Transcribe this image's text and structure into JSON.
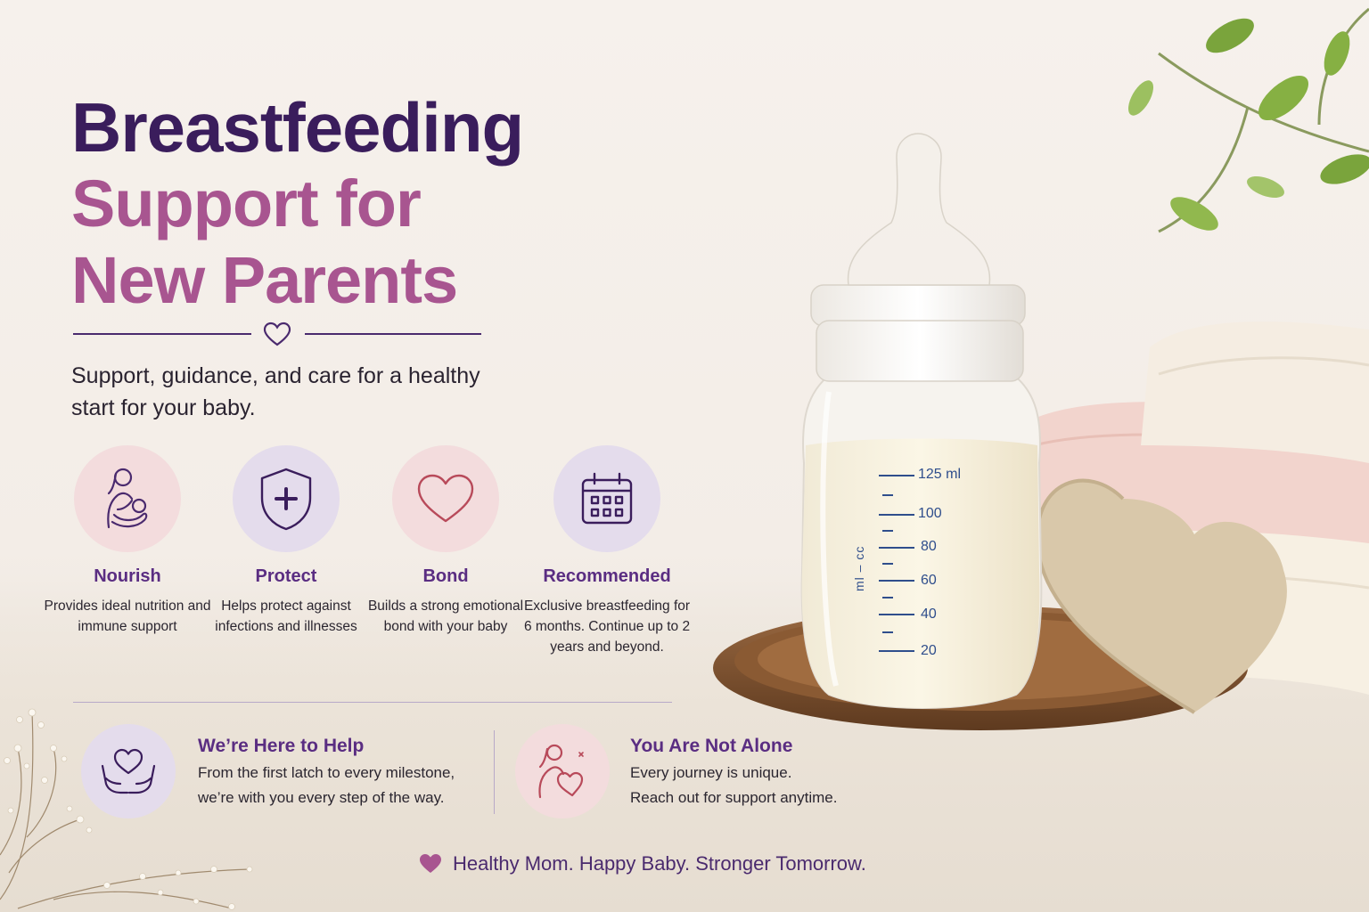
{
  "heading": {
    "line1": "Breastfeeding",
    "line2": "Support for",
    "line3": "New Parents"
  },
  "subtitle": "Support, guidance, and care for a healthy start for your baby.",
  "benefits": [
    {
      "icon": "mother-baby-icon",
      "title": "Nourish",
      "text": "Provides ideal nutrition and immune support"
    },
    {
      "icon": "shield-plus-icon",
      "title": "Protect",
      "text": "Helps protect against infections and illnesses"
    },
    {
      "icon": "heart-icon",
      "title": "Bond",
      "text": "Builds a strong emotional bond with your baby"
    },
    {
      "icon": "calendar-icon",
      "title": "Recommended",
      "text": "Exclusive breastfeeding for 6 months. Continue up to 2 years and beyond."
    }
  ],
  "help": {
    "title": "We’re Here to Help",
    "line1": "From the first latch to every milestone,",
    "line2": "we’re with you every step of the way.",
    "icon": "hands-heart-icon"
  },
  "not_alone": {
    "title": "You Are Not Alone",
    "line1": "Every journey is unique.",
    "line2": "Reach out for support anytime.",
    "icon": "mother-child-heart-icon"
  },
  "tagline": "Healthy Mom. Happy Baby. Stronger Tomorrow.",
  "bottle": {
    "markings": [
      "125 ml",
      "100",
      "80",
      "60",
      "40",
      "20"
    ],
    "unit_label": "ml – cc"
  },
  "colors": {
    "deep_purple": "#3a1d5c",
    "rose": "#a85590",
    "accent_purple": "#5a2d82",
    "pink_circle": "#f3dcdd",
    "lavender_circle": "#e4dcec"
  }
}
